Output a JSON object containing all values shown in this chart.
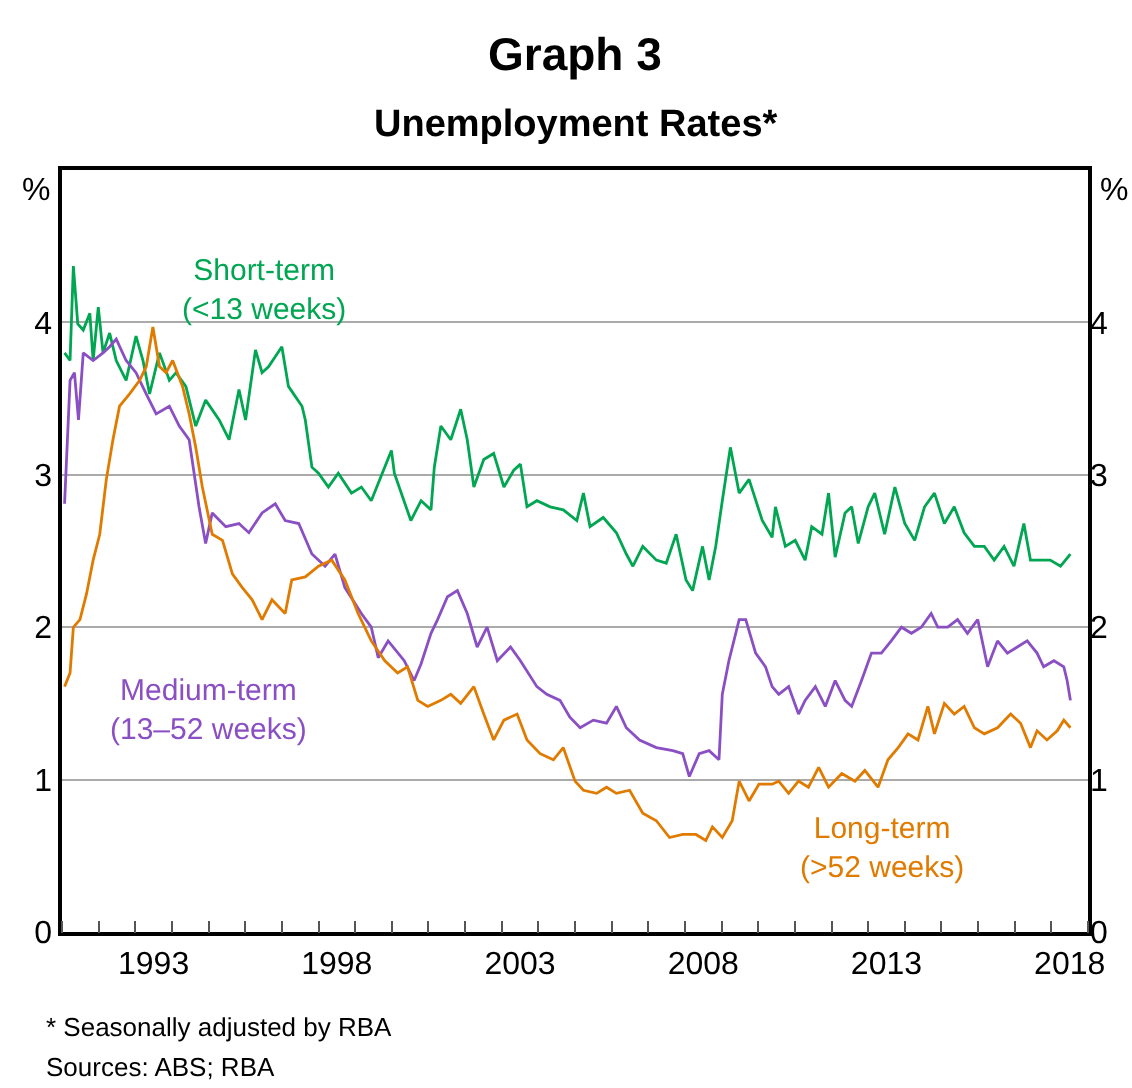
{
  "chart_data": {
    "type": "line",
    "title": "Graph 3",
    "subtitle": "Unemployment Rates*",
    "ylabel": "%",
    "y2label": "%",
    "annotations": [
      "* Seasonally adjusted by RBA",
      "Sources: ABS; RBA"
    ],
    "xlim": [
      1991,
      2019
    ],
    "xticks": [
      {
        "value": 1991,
        "label": null
      },
      {
        "value": 1992,
        "label": null
      },
      {
        "value": 1993,
        "label": null
      },
      {
        "value": 1993.5,
        "label": "1993"
      },
      {
        "value": 1994,
        "label": null
      },
      {
        "value": 1995,
        "label": null
      },
      {
        "value": 1996,
        "label": null
      },
      {
        "value": 1997,
        "label": null
      },
      {
        "value": 1998,
        "label": null
      },
      {
        "value": 1998.5,
        "label": "1998"
      },
      {
        "value": 1999,
        "label": null
      },
      {
        "value": 2000,
        "label": null
      },
      {
        "value": 2001,
        "label": null
      },
      {
        "value": 2002,
        "label": null
      },
      {
        "value": 2003,
        "label": null
      },
      {
        "value": 2003.5,
        "label": "2003"
      },
      {
        "value": 2004,
        "label": null
      },
      {
        "value": 2005,
        "label": null
      },
      {
        "value": 2006,
        "label": null
      },
      {
        "value": 2007,
        "label": null
      },
      {
        "value": 2008,
        "label": null
      },
      {
        "value": 2008.5,
        "label": "2008"
      },
      {
        "value": 2009,
        "label": null
      },
      {
        "value": 2010,
        "label": null
      },
      {
        "value": 2011,
        "label": null
      },
      {
        "value": 2012,
        "label": null
      },
      {
        "value": 2013,
        "label": null
      },
      {
        "value": 2013.5,
        "label": "2013"
      },
      {
        "value": 2014,
        "label": null
      },
      {
        "value": 2015,
        "label": null
      },
      {
        "value": 2016,
        "label": null
      },
      {
        "value": 2017,
        "label": null
      },
      {
        "value": 2018,
        "label": null
      },
      {
        "value": 2018.5,
        "label": "2018"
      },
      {
        "value": 2019,
        "label": null
      }
    ],
    "ylim": [
      0,
      5
    ],
    "yticks": [
      0,
      1,
      2,
      3,
      4
    ],
    "y2lim": [
      0,
      5
    ],
    "y2ticks": [
      0,
      1,
      2,
      3,
      4
    ],
    "grid": "y",
    "legend": false,
    "marker": "none",
    "line_style": "solid",
    "series": [
      {
        "name": "Short-term\n(<13 weeks)",
        "color": "#00a651",
        "x": [
          1991.07,
          1991.22,
          1991.31,
          1991.43,
          1991.58,
          1991.76,
          1991.85,
          1991.99,
          1992.12,
          1992.3,
          1992.48,
          1992.75,
          1993.02,
          1993.21,
          1993.39,
          1993.66,
          1993.93,
          1994.11,
          1994.38,
          1994.65,
          1994.92,
          1995.29,
          1995.56,
          1995.83,
          1996.01,
          1996.28,
          1996.46,
          1996.64,
          1997.0,
          1997.18,
          1997.55,
          1997.64,
          1997.82,
          1998.0,
          1998.27,
          1998.54,
          1998.9,
          1999.17,
          1999.44,
          1999.99,
          2000.07,
          2000.52,
          2000.8,
          2001.07,
          2001.16,
          2001.34,
          2001.61,
          2001.88,
          2002.06,
          2002.24,
          2002.51,
          2002.78,
          2003.06,
          2003.33,
          2003.51,
          2003.69,
          2003.96,
          2004.32,
          2004.68,
          2005.05,
          2005.23,
          2005.41,
          2005.77,
          2006.13,
          2006.4,
          2006.58,
          2006.85,
          2007.22,
          2007.49,
          2007.76,
          2008.03,
          2008.21,
          2008.48,
          2008.66,
          2008.84,
          2009.02,
          2009.24,
          2009.48,
          2009.75,
          2010.11,
          2010.38,
          2010.47,
          2010.74,
          2011.01,
          2011.28,
          2011.46,
          2011.74,
          2011.92,
          2012.1,
          2012.37,
          2012.55,
          2012.73,
          2013.0,
          2013.18,
          2013.45,
          2013.73,
          2014.0,
          2014.27,
          2014.54,
          2014.81,
          2015.08,
          2015.35,
          2015.62,
          2015.9,
          2016.17,
          2016.44,
          2016.71,
          2016.98,
          2017.25,
          2017.43,
          2017.7,
          2017.97,
          2018.25,
          2018.52
        ],
        "values": [
          3.8,
          3.75,
          4.37,
          3.99,
          3.95,
          4.06,
          3.75,
          4.1,
          3.8,
          3.93,
          3.75,
          3.62,
          3.91,
          3.75,
          3.53,
          3.8,
          3.62,
          3.67,
          3.58,
          3.32,
          3.49,
          3.36,
          3.23,
          3.56,
          3.36,
          3.82,
          3.67,
          3.71,
          3.84,
          3.58,
          3.45,
          3.36,
          3.05,
          3.01,
          2.92,
          3.01,
          2.88,
          2.92,
          2.83,
          3.16,
          3.01,
          2.7,
          2.83,
          2.77,
          3.05,
          3.32,
          3.23,
          3.43,
          3.23,
          2.92,
          3.1,
          3.14,
          2.92,
          3.03,
          3.07,
          2.79,
          2.83,
          2.79,
          2.77,
          2.7,
          2.88,
          2.66,
          2.72,
          2.62,
          2.48,
          2.4,
          2.53,
          2.44,
          2.42,
          2.61,
          2.31,
          2.24,
          2.53,
          2.31,
          2.53,
          2.83,
          3.18,
          2.88,
          2.97,
          2.7,
          2.59,
          2.79,
          2.53,
          2.57,
          2.44,
          2.66,
          2.61,
          2.88,
          2.46,
          2.75,
          2.79,
          2.55,
          2.79,
          2.88,
          2.61,
          2.92,
          2.68,
          2.57,
          2.79,
          2.88,
          2.68,
          2.79,
          2.62,
          2.53,
          2.53,
          2.44,
          2.53,
          2.4,
          2.68,
          2.44,
          2.44,
          2.44,
          2.4,
          2.48
        ]
      },
      {
        "name": "Medium-term\n(13–52 weeks)",
        "color": "#8b4fc4",
        "x": [
          1991.07,
          1991.22,
          1991.34,
          1991.45,
          1991.58,
          1991.85,
          1992.12,
          1992.3,
          1992.48,
          1992.75,
          1993.02,
          1993.3,
          1993.57,
          1993.93,
          1994.2,
          1994.47,
          1994.74,
          1994.92,
          1995.1,
          1995.47,
          1995.83,
          1996.1,
          1996.46,
          1996.82,
          1997.09,
          1997.46,
          1997.82,
          1998.18,
          1998.45,
          1998.72,
          1999.17,
          1999.44,
          1999.63,
          1999.9,
          2000.34,
          2000.61,
          2000.8,
          2001.07,
          2001.25,
          2001.52,
          2001.79,
          2002.06,
          2002.33,
          2002.6,
          2002.88,
          2003.24,
          2003.51,
          2003.96,
          2004.23,
          2004.59,
          2004.86,
          2005.14,
          2005.5,
          2005.86,
          2006.13,
          2006.4,
          2006.76,
          2007.22,
          2007.67,
          2007.94,
          2008.12,
          2008.39,
          2008.66,
          2008.93,
          2009.02,
          2009.2,
          2009.48,
          2009.66,
          2009.93,
          2010.2,
          2010.38,
          2010.56,
          2010.83,
          2011.1,
          2011.28,
          2011.56,
          2011.83,
          2012.1,
          2012.37,
          2012.55,
          2012.82,
          2013.09,
          2013.36,
          2013.63,
          2013.91,
          2014.18,
          2014.45,
          2014.72,
          2014.9,
          2015.17,
          2015.44,
          2015.71,
          2015.99,
          2016.26,
          2016.53,
          2016.8,
          2017.07,
          2017.34,
          2017.61,
          2017.79,
          2018.07,
          2018.34,
          2018.43,
          2018.52
        ],
        "values": [
          2.81,
          3.62,
          3.67,
          3.36,
          3.8,
          3.75,
          3.8,
          3.84,
          3.89,
          3.75,
          3.67,
          3.53,
          3.4,
          3.45,
          3.32,
          3.23,
          2.79,
          2.55,
          2.75,
          2.66,
          2.68,
          2.62,
          2.75,
          2.81,
          2.7,
          2.68,
          2.48,
          2.4,
          2.48,
          2.26,
          2.09,
          2.0,
          1.8,
          1.91,
          1.78,
          1.65,
          1.76,
          1.96,
          2.05,
          2.2,
          2.24,
          2.09,
          1.87,
          2.0,
          1.78,
          1.87,
          1.78,
          1.61,
          1.56,
          1.52,
          1.41,
          1.34,
          1.39,
          1.37,
          1.48,
          1.34,
          1.26,
          1.21,
          1.19,
          1.17,
          1.02,
          1.17,
          1.19,
          1.13,
          1.56,
          1.78,
          2.05,
          2.05,
          1.83,
          1.74,
          1.61,
          1.56,
          1.61,
          1.43,
          1.52,
          1.61,
          1.48,
          1.65,
          1.52,
          1.48,
          1.65,
          1.83,
          1.83,
          1.91,
          2.0,
          1.96,
          2.0,
          2.09,
          2.0,
          2.0,
          2.05,
          1.96,
          2.05,
          1.74,
          1.91,
          1.83,
          1.87,
          1.91,
          1.83,
          1.74,
          1.78,
          1.74,
          1.65,
          1.52
        ]
      },
      {
        "name": "Long-term\n(>52 weeks)",
        "color": "#e07b00",
        "x": [
          1991.07,
          1991.22,
          1991.31,
          1991.49,
          1991.67,
          1991.85,
          1992.03,
          1992.21,
          1992.39,
          1992.57,
          1992.84,
          1993.12,
          1993.3,
          1993.48,
          1993.66,
          1993.84,
          1994.02,
          1994.29,
          1994.47,
          1994.65,
          1994.83,
          1995.1,
          1995.38,
          1995.65,
          1995.92,
          1996.19,
          1996.46,
          1996.73,
          1997.09,
          1997.27,
          1997.64,
          1998.0,
          1998.36,
          1998.72,
          1999.08,
          1999.44,
          1999.81,
          2000.16,
          2000.43,
          2000.71,
          2000.98,
          2001.34,
          2001.61,
          2001.88,
          2002.24,
          2002.51,
          2002.78,
          2003.06,
          2003.42,
          2003.69,
          2004.05,
          2004.41,
          2004.68,
          2005.0,
          2005.23,
          2005.59,
          2005.86,
          2006.13,
          2006.49,
          2006.85,
          2007.22,
          2007.58,
          2007.94,
          2008.3,
          2008.57,
          2008.75,
          2009.02,
          2009.29,
          2009.48,
          2009.75,
          2010.02,
          2010.38,
          2010.56,
          2010.83,
          2011.1,
          2011.37,
          2011.65,
          2011.92,
          2012.28,
          2012.64,
          2012.91,
          2013.27,
          2013.54,
          2013.82,
          2014.09,
          2014.36,
          2014.63,
          2014.81,
          2015.08,
          2015.35,
          2015.62,
          2015.9,
          2016.17,
          2016.53,
          2016.89,
          2017.16,
          2017.43,
          2017.61,
          2017.88,
          2018.16,
          2018.34,
          2018.52
        ],
        "values": [
          1.61,
          1.7,
          2.0,
          2.05,
          2.22,
          2.44,
          2.61,
          2.97,
          3.23,
          3.45,
          3.53,
          3.62,
          3.71,
          3.97,
          3.71,
          3.67,
          3.75,
          3.58,
          3.4,
          3.18,
          2.92,
          2.61,
          2.57,
          2.35,
          2.26,
          2.18,
          2.05,
          2.18,
          2.09,
          2.31,
          2.33,
          2.4,
          2.44,
          2.31,
          2.09,
          1.91,
          1.78,
          1.7,
          1.74,
          1.52,
          1.48,
          1.52,
          1.56,
          1.5,
          1.61,
          1.43,
          1.26,
          1.39,
          1.43,
          1.26,
          1.17,
          1.13,
          1.21,
          0.99,
          0.93,
          0.91,
          0.95,
          0.91,
          0.93,
          0.78,
          0.73,
          0.62,
          0.64,
          0.64,
          0.6,
          0.69,
          0.62,
          0.73,
          0.99,
          0.86,
          0.97,
          0.97,
          0.99,
          0.91,
          0.99,
          0.95,
          1.08,
          0.95,
          1.04,
          0.99,
          1.06,
          0.95,
          1.13,
          1.21,
          1.3,
          1.26,
          1.48,
          1.3,
          1.5,
          1.43,
          1.48,
          1.34,
          1.3,
          1.34,
          1.43,
          1.37,
          1.21,
          1.32,
          1.26,
          1.32,
          1.39,
          1.34
        ]
      }
    ]
  }
}
